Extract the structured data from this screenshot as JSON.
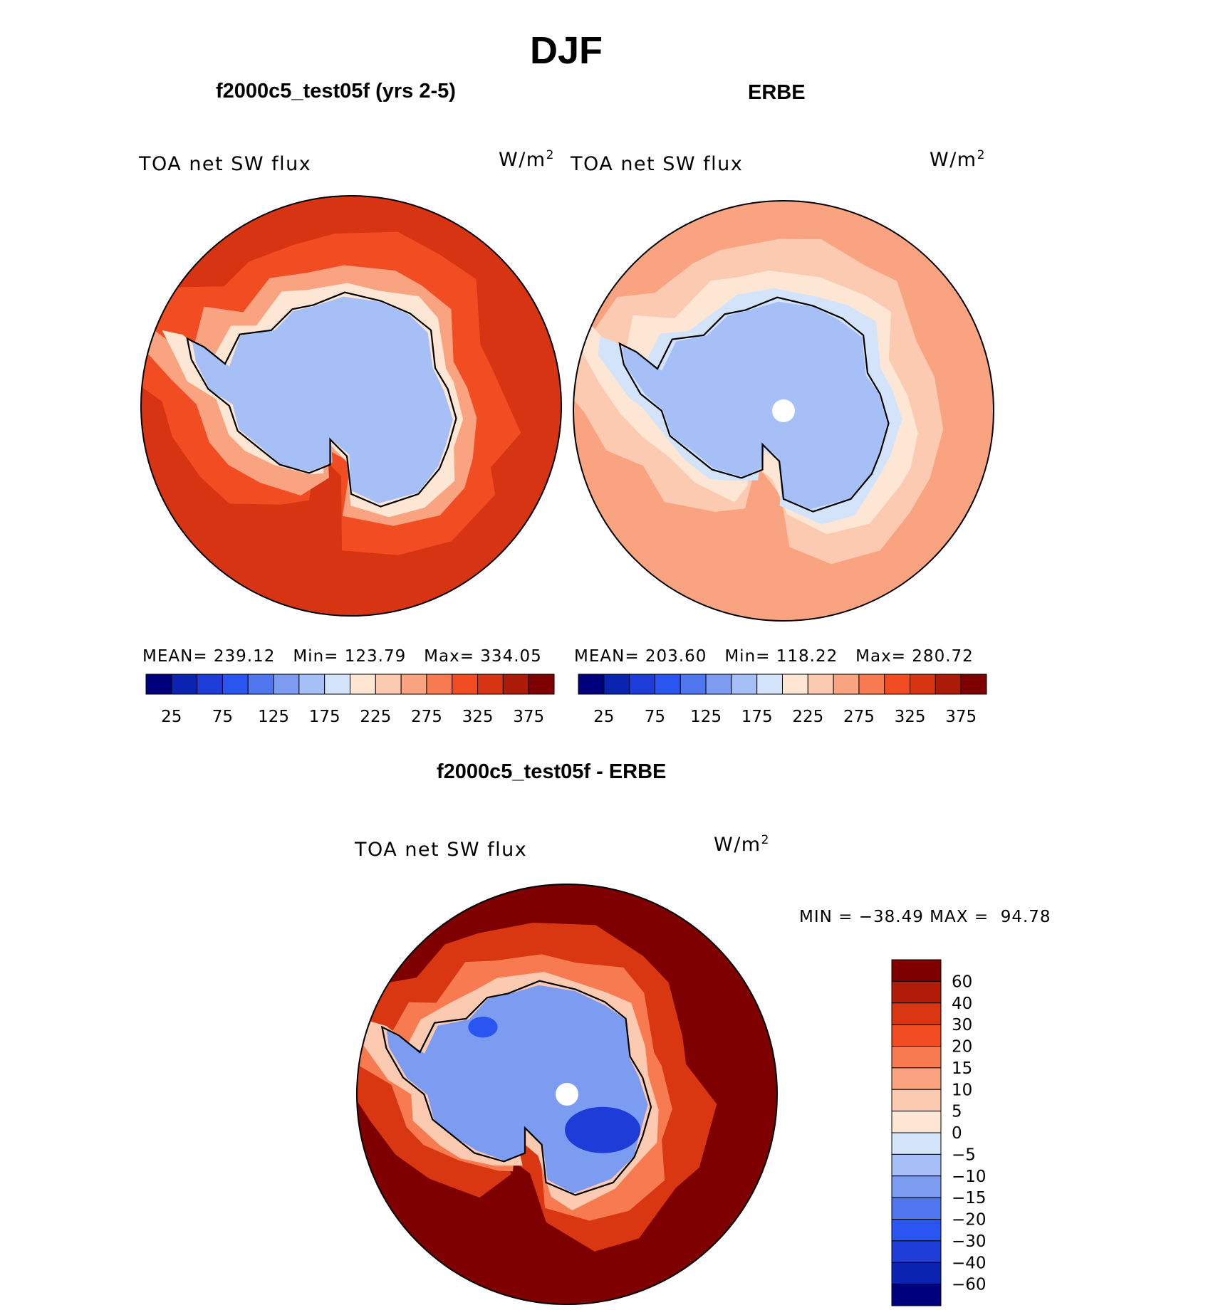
{
  "figure": {
    "season": "DJF",
    "panels": [
      {
        "title": "f2000c5_test05f (yrs 2-5)",
        "variable": "TOA net SW flux",
        "units_base": "W/m",
        "units_exp": "2",
        "stats": {
          "mean_label": "MEAN=",
          "mean": "239.12",
          "min_label": "Min=",
          "min": "123.79",
          "max_label": "Max=",
          "max": "334.05"
        }
      },
      {
        "title": "ERBE",
        "variable": "TOA net SW flux",
        "units_base": "W/m",
        "units_exp": "2",
        "stats": {
          "mean_label": "MEAN=",
          "mean": "203.60",
          "min_label": "Min=",
          "min": "118.22",
          "max_label": "Max=",
          "max": "280.72"
        }
      }
    ],
    "diff_panel": {
      "title": "f2000c5_test05f - ERBE",
      "variable": "TOA net SW flux",
      "units_base": "W/m",
      "units_exp": "2",
      "minmax": {
        "min_label": "MIN =",
        "min": "−38.49",
        "max_label": "MAX =",
        "max": "94.78"
      }
    }
  },
  "chart_data": [
    {
      "type": "heatmap",
      "title": "f2000c5_test05f (yrs 2-5)",
      "projection": "south polar stereographic",
      "region": "Antarctica / Southern Ocean",
      "variable": "TOA net SW flux (W/m2)",
      "mean": 239.12,
      "min": 123.79,
      "max": 334.05,
      "colorbar_levels": [
        25,
        50,
        75,
        100,
        125,
        150,
        175,
        200,
        225,
        250,
        275,
        300,
        325,
        350,
        375
      ],
      "colorbar_tick_labels": [
        "25",
        "75",
        "125",
        "175",
        "225",
        "275",
        "325",
        "375"
      ],
      "colors": [
        "#00007f",
        "#0a23b0",
        "#1e3cd8",
        "#2a55f0",
        "#4f76ee",
        "#7c9cf2",
        "#a6bff6",
        "#d3e4fa",
        "#fde7d4",
        "#fccab0",
        "#f9a381",
        "#f77a50",
        "#f24d22",
        "#d63412",
        "#ac1a0a",
        "#7e0000"
      ],
      "fields": {
        "antarctica": 150,
        "coastal_ring": 200,
        "southern_ocean": 300,
        "outer_ocean": 325
      }
    },
    {
      "type": "heatmap",
      "title": "ERBE",
      "projection": "south polar stereographic",
      "region": "Antarctica / Southern Ocean",
      "variable": "TOA net SW flux (W/m2)",
      "mean": 203.6,
      "min": 118.22,
      "max": 280.72,
      "colorbar_levels": [
        25,
        50,
        75,
        100,
        125,
        150,
        175,
        200,
        225,
        250,
        275,
        300,
        325,
        350,
        375
      ],
      "colorbar_tick_labels": [
        "25",
        "75",
        "125",
        "175",
        "225",
        "275",
        "325",
        "375"
      ],
      "colors": [
        "#00007f",
        "#0a23b0",
        "#1e3cd8",
        "#2a55f0",
        "#4f76ee",
        "#7c9cf2",
        "#a6bff6",
        "#d3e4fa",
        "#fde7d4",
        "#fccab0",
        "#f9a381",
        "#f77a50",
        "#f24d22",
        "#d63412",
        "#ac1a0a",
        "#7e0000"
      ],
      "fields": {
        "antarctica": 150,
        "coastal_ring": 190,
        "southern_ocean": 230,
        "outer_ocean": 260
      }
    },
    {
      "type": "heatmap",
      "title": "f2000c5_test05f - ERBE",
      "projection": "south polar stereographic",
      "region": "Antarctica / Southern Ocean",
      "variable": "TOA net SW flux difference (W/m2)",
      "min": -38.49,
      "max": 94.78,
      "colorbar_levels": [
        60,
        40,
        30,
        20,
        15,
        10,
        5,
        0,
        -5,
        -10,
        -15,
        -20,
        -30,
        -40,
        -60
      ],
      "colorbar_tick_labels": [
        "60",
        "40",
        "30",
        "20",
        "15",
        "10",
        "5",
        "0",
        "−5",
        "−10",
        "−15",
        "−20",
        "−30",
        "−40",
        "−60"
      ],
      "colors": [
        "#7e0000",
        "#b01c08",
        "#d93612",
        "#f24d22",
        "#f77a50",
        "#f9a381",
        "#fccab0",
        "#fde7d4",
        "#d3e4fa",
        "#a6bff6",
        "#7c9cf2",
        "#4f76ee",
        "#2a55f0",
        "#1e3cd8",
        "#0a23b0",
        "#00007f"
      ],
      "fields": {
        "antarctica_interior": -15,
        "antarctica_edge": 5,
        "southern_ocean": 30,
        "outer_ocean": 60
      }
    }
  ]
}
